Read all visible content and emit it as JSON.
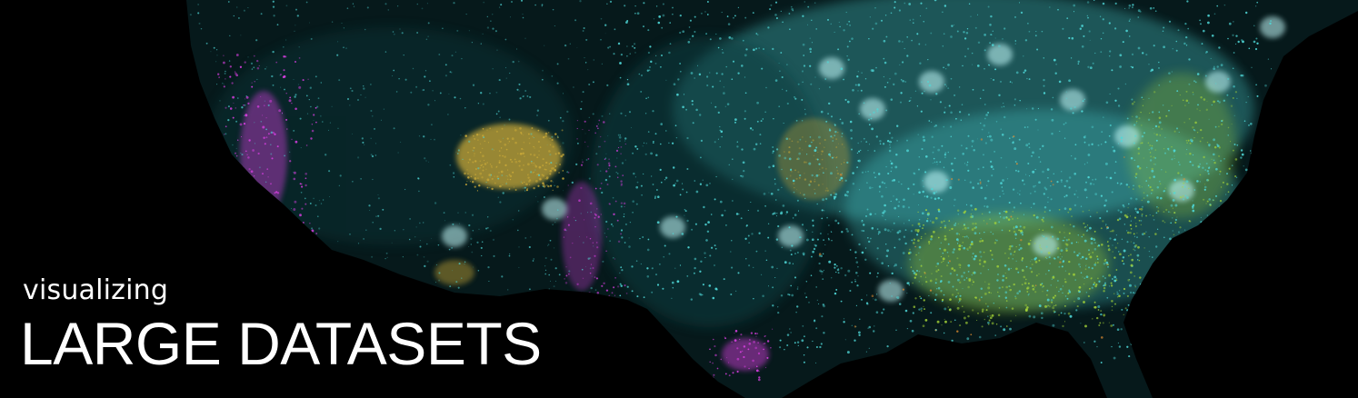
{
  "caption": {
    "kicker": "visualizing",
    "headline": "LARGE DATASETS"
  },
  "map": {
    "region": "contiguous-united-states",
    "style": "dot-density-night",
    "background_color": "#000000",
    "colors": {
      "cyan": "#4fd8d8",
      "magenta": "#e040e8",
      "gold": "#c8a838",
      "green": "#a8d838",
      "orange": "#e89030",
      "dark_teal": "#0e3c40"
    }
  }
}
